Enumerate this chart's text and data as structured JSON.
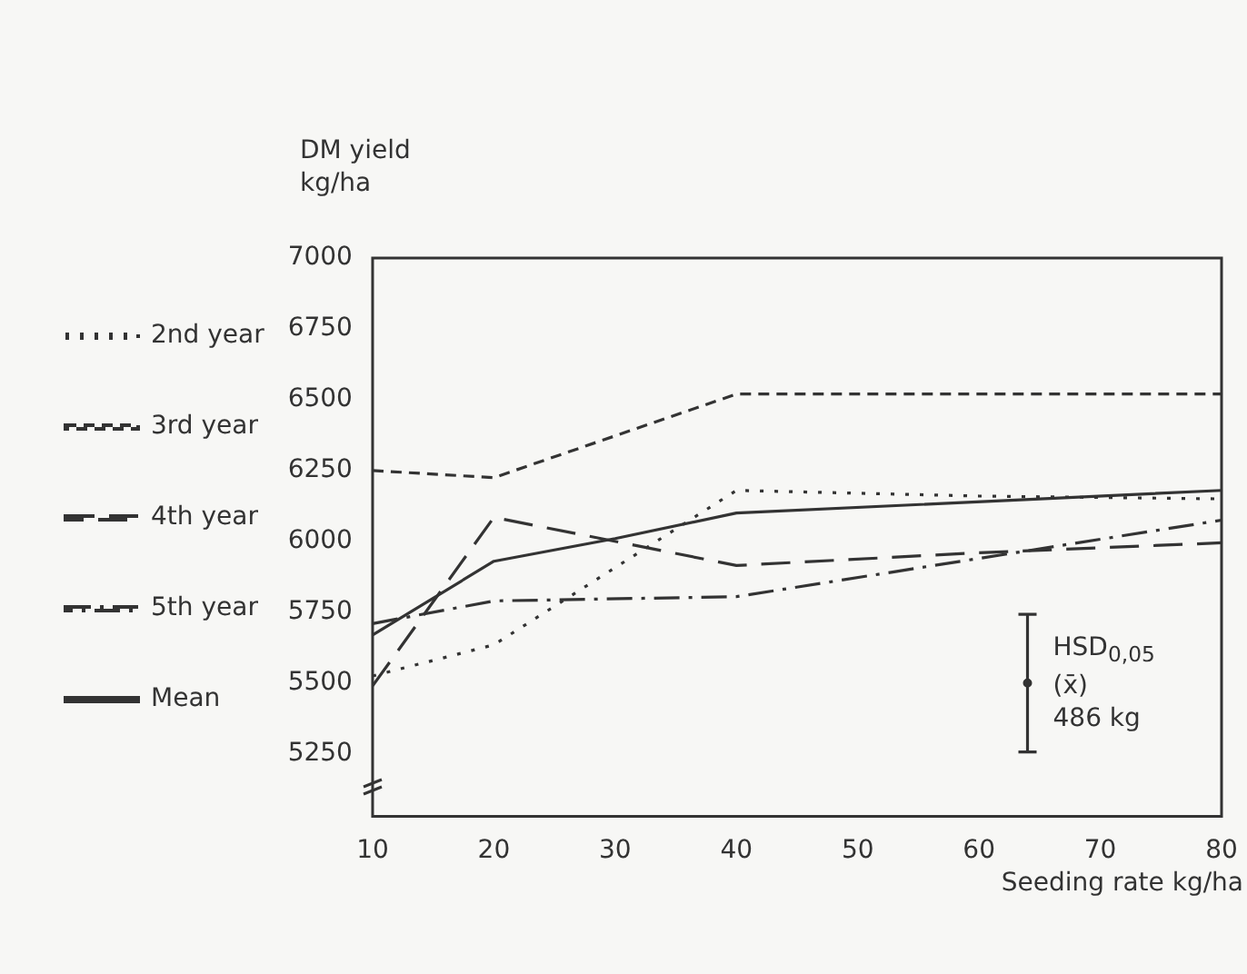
{
  "chart_data": {
    "type": "line",
    "ylabel": "DM yield\nkg/ha",
    "xlabel": "Seeding rate kg/ha",
    "xlim": [
      10,
      80
    ],
    "xticks": [
      10,
      20,
      30,
      40,
      50,
      60,
      70,
      80
    ],
    "ylim": [
      5030,
      7000
    ],
    "yticks": [
      5250,
      5500,
      5750,
      6000,
      6250,
      6500,
      6750,
      7000
    ],
    "grid": false,
    "legend": "left",
    "marker": "none",
    "series": [
      {
        "name": "2nd year",
        "color": "#333333",
        "line_style": "dotted",
        "x": [
          10,
          20,
          40,
          60,
          80
        ],
        "values": [
          5525,
          5635,
          6180,
          6160,
          6150
        ]
      },
      {
        "name": "3rd year",
        "color": "#333333",
        "line_style": "dashed",
        "x": [
          10,
          20,
          40,
          80
        ],
        "values": [
          6250,
          6225,
          6520,
          6520
        ]
      },
      {
        "name": "4th year",
        "color": "#333333",
        "line_style": "longdashed",
        "x": [
          10,
          20,
          40,
          60,
          80
        ],
        "values": [
          5490,
          6085,
          5915,
          5960,
          5995
        ]
      },
      {
        "name": "5th year",
        "color": "#333333",
        "line_style": "dashdot",
        "x": [
          10,
          20,
          40,
          80
        ],
        "values": [
          5710,
          5790,
          5805,
          6075
        ]
      },
      {
        "name": "Mean",
        "color": "#333333",
        "line_style": "solid",
        "x": [
          10,
          20,
          30,
          40,
          80
        ],
        "values": [
          5670,
          5930,
          6010,
          6100,
          6180
        ]
      },
      {
        "type": "scatter",
        "color": "#333333",
        "marker": "circle",
        "x": [
          64
        ],
        "values": [
          5500
        ],
        "errors": [
          243
        ]
      }
    ],
    "annotations": [
      "HSD$_{0,05}$\n(x̄)\n486 kg"
    ]
  }
}
